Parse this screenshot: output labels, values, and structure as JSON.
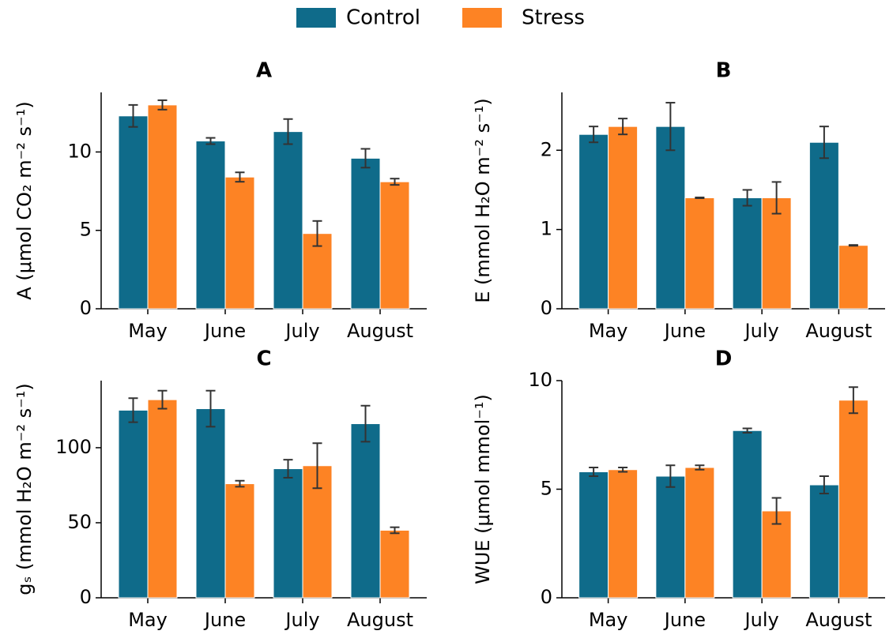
{
  "chart_data": [
    {
      "type": "bar",
      "title": "A",
      "ylabel": "A (μmol CO₂ m⁻² s⁻¹)",
      "categories": [
        "May",
        "June",
        "July",
        "August"
      ],
      "series": [
        {
          "name": "Control",
          "color": "#0f6b8a",
          "values": [
            12.3,
            10.7,
            11.3,
            9.6
          ],
          "errors": [
            0.7,
            0.2,
            0.8,
            0.6
          ]
        },
        {
          "name": "Stress",
          "color": "#fd8324",
          "values": [
            13.0,
            8.4,
            4.8,
            8.1
          ],
          "errors": [
            0.3,
            0.3,
            0.8,
            0.2
          ]
        }
      ],
      "ylim": [
        0,
        13.8
      ],
      "yticks": [
        0,
        5,
        10
      ]
    },
    {
      "type": "bar",
      "title": "B",
      "ylabel": "E (mmol H₂O m⁻² s⁻¹)",
      "categories": [
        "May",
        "June",
        "July",
        "August"
      ],
      "series": [
        {
          "color": "#0f6b8a",
          "values": [
            2.2,
            2.3,
            1.4,
            2.1
          ],
          "errors": [
            0.1,
            0.3,
            0.1,
            0.2
          ]
        },
        {
          "color": "#fd8324",
          "values": [
            2.3,
            1.4,
            1.4,
            0.8
          ],
          "errors": [
            0.1,
            0.005,
            0.2,
            0.005
          ]
        }
      ],
      "ylim": [
        0,
        2.73
      ],
      "yticks": [
        0,
        1,
        2
      ]
    },
    {
      "type": "bar",
      "title": "C",
      "ylabel": "gₛ (mmol H₂O m⁻² s⁻¹)",
      "categories": [
        "May",
        "June",
        "July",
        "August"
      ],
      "series": [
        {
          "color": "#0f6b8a",
          "values": [
            125,
            126,
            86,
            116
          ],
          "errors": [
            8,
            12,
            6,
            12
          ]
        },
        {
          "color": "#fd8324",
          "values": [
            132,
            76,
            88,
            45
          ],
          "errors": [
            6,
            2,
            15,
            2
          ]
        }
      ],
      "ylim": [
        0,
        144.7
      ],
      "yticks": [
        0,
        50,
        100
      ]
    },
    {
      "type": "bar",
      "title": "D",
      "ylabel": "WUE (μmol mmol⁻¹)",
      "categories": [
        "May",
        "June",
        "July",
        "August"
      ],
      "series": [
        {
          "color": "#0f6b8a",
          "values": [
            5.8,
            5.6,
            7.7,
            5.2
          ],
          "errors": [
            0.2,
            0.5,
            0.1,
            0.4
          ]
        },
        {
          "color": "#fd8324",
          "values": [
            5.9,
            6.0,
            4.0,
            9.1
          ],
          "errors": [
            0.1,
            0.1,
            0.6,
            0.6
          ]
        }
      ],
      "ylim": [
        0,
        10
      ],
      "yticks": [
        0,
        5,
        10
      ]
    }
  ]
}
